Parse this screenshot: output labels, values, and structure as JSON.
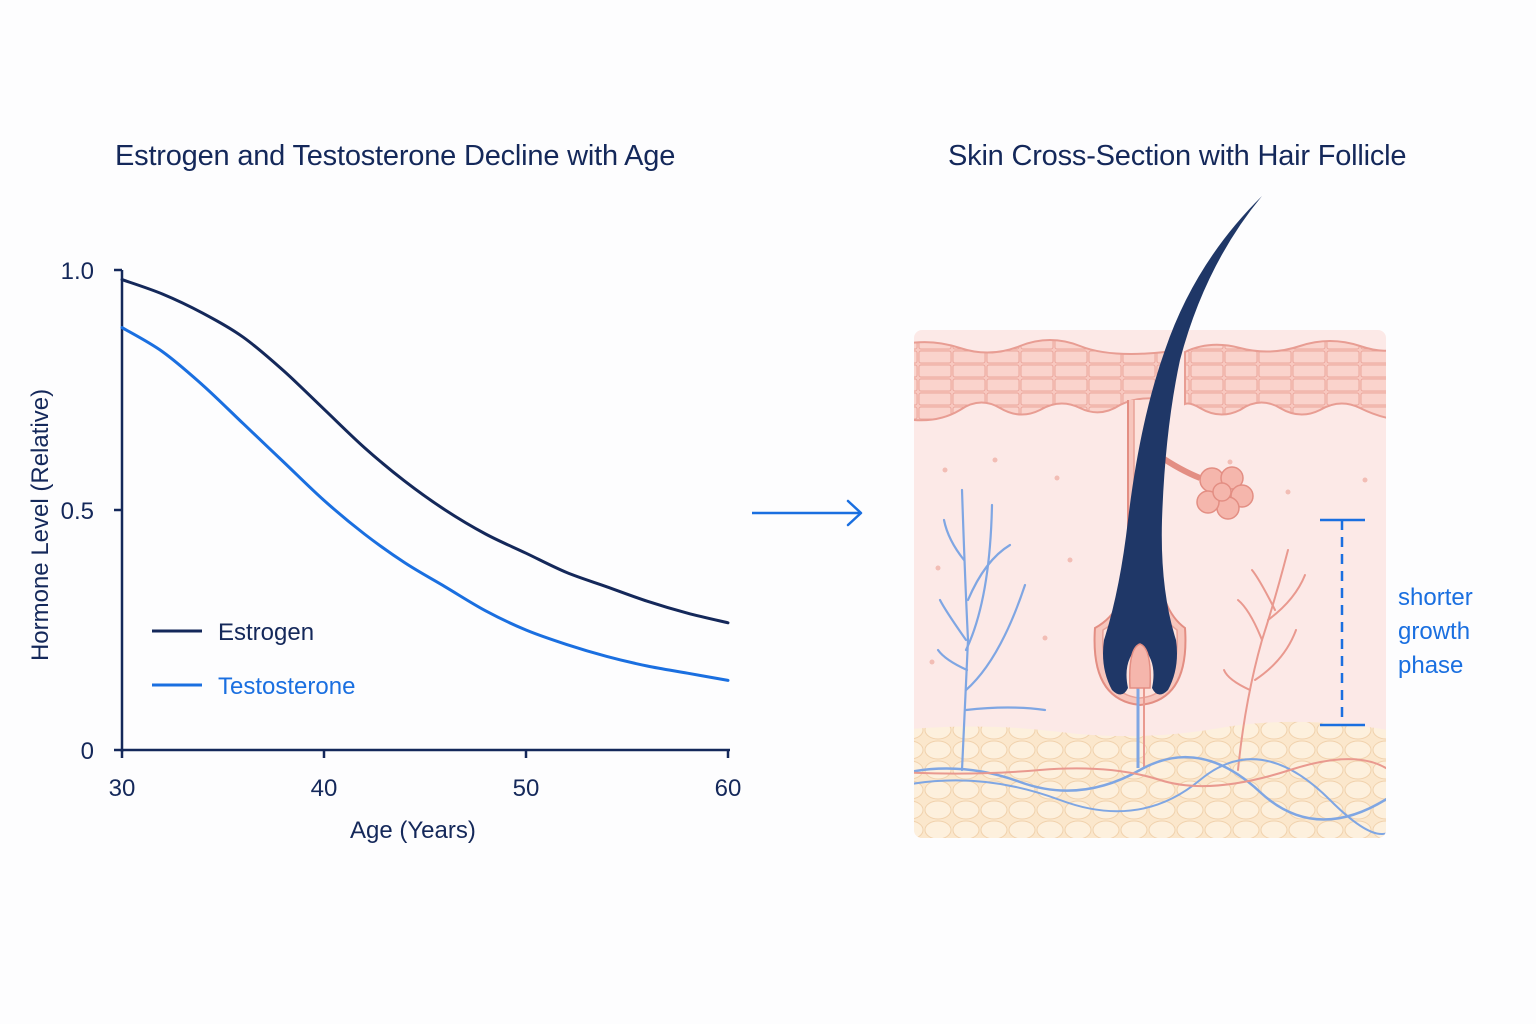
{
  "chart_data": {
    "type": "line",
    "title": "Estrogen and Testosterone Decline with Age",
    "xlabel": "Age (Years)",
    "ylabel": "Hormone Level (Relative)",
    "xlim": [
      30,
      60
    ],
    "ylim": [
      0,
      1.0
    ],
    "x_ticks": [
      "30",
      "40",
      "50",
      "60"
    ],
    "y_ticks": [
      "0",
      "0.5",
      "1.0"
    ],
    "x": [
      30,
      32,
      34,
      36,
      38,
      40,
      42,
      44,
      46,
      48,
      50,
      52,
      54,
      56,
      58,
      60
    ],
    "series": [
      {
        "name": "Estrogen",
        "color": "#14285a",
        "values": [
          0.98,
          0.95,
          0.91,
          0.86,
          0.79,
          0.71,
          0.63,
          0.56,
          0.5,
          0.45,
          0.41,
          0.37,
          0.34,
          0.31,
          0.285,
          0.265
        ]
      },
      {
        "name": "Testosterone",
        "color": "#1a6fe0",
        "values": [
          0.88,
          0.83,
          0.76,
          0.68,
          0.6,
          0.52,
          0.45,
          0.39,
          0.34,
          0.29,
          0.25,
          0.22,
          0.195,
          0.175,
          0.16,
          0.145
        ]
      }
    ],
    "grid": false,
    "legend": "bottom-left"
  },
  "diagram": {
    "title": "Skin Cross-Section with Hair Follicle",
    "annotation_lines": [
      "shorter",
      "growth",
      "phase"
    ],
    "arrow_color": "#1a6fe0"
  }
}
